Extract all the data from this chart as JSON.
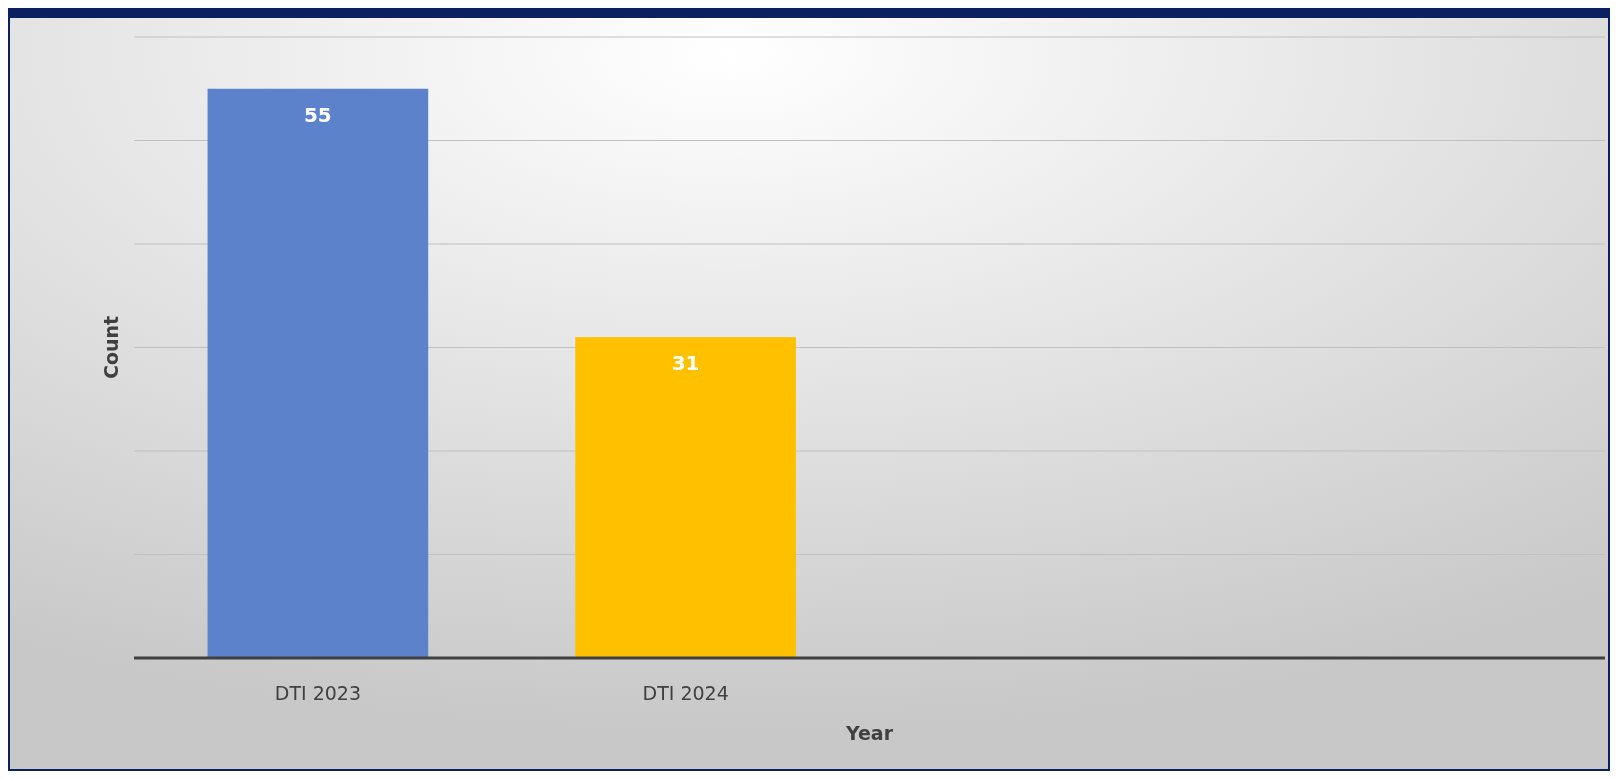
{
  "chart_data": {
    "type": "bar",
    "xlabel": "Year",
    "ylabel": "Count",
    "categories": [
      "DTI 2023",
      "DTI 2024",
      null,
      null
    ],
    "values": [
      55,
      31,
      null,
      null
    ],
    "colors": [
      "#5b82cb",
      "#ffc000",
      null,
      null
    ],
    "ylim": [
      0,
      60
    ],
    "yticks": [
      {
        "value": 0,
        "label": null
      },
      {
        "value": 10,
        "label": null
      },
      {
        "value": 20,
        "label": null
      },
      {
        "value": 30,
        "label": null
      },
      {
        "value": 40,
        "label": null
      },
      {
        "value": 50,
        "label": null
      },
      {
        "value": 60,
        "label": null
      }
    ],
    "tick_labels": "x",
    "grid": "y",
    "data_labels": true
  }
}
